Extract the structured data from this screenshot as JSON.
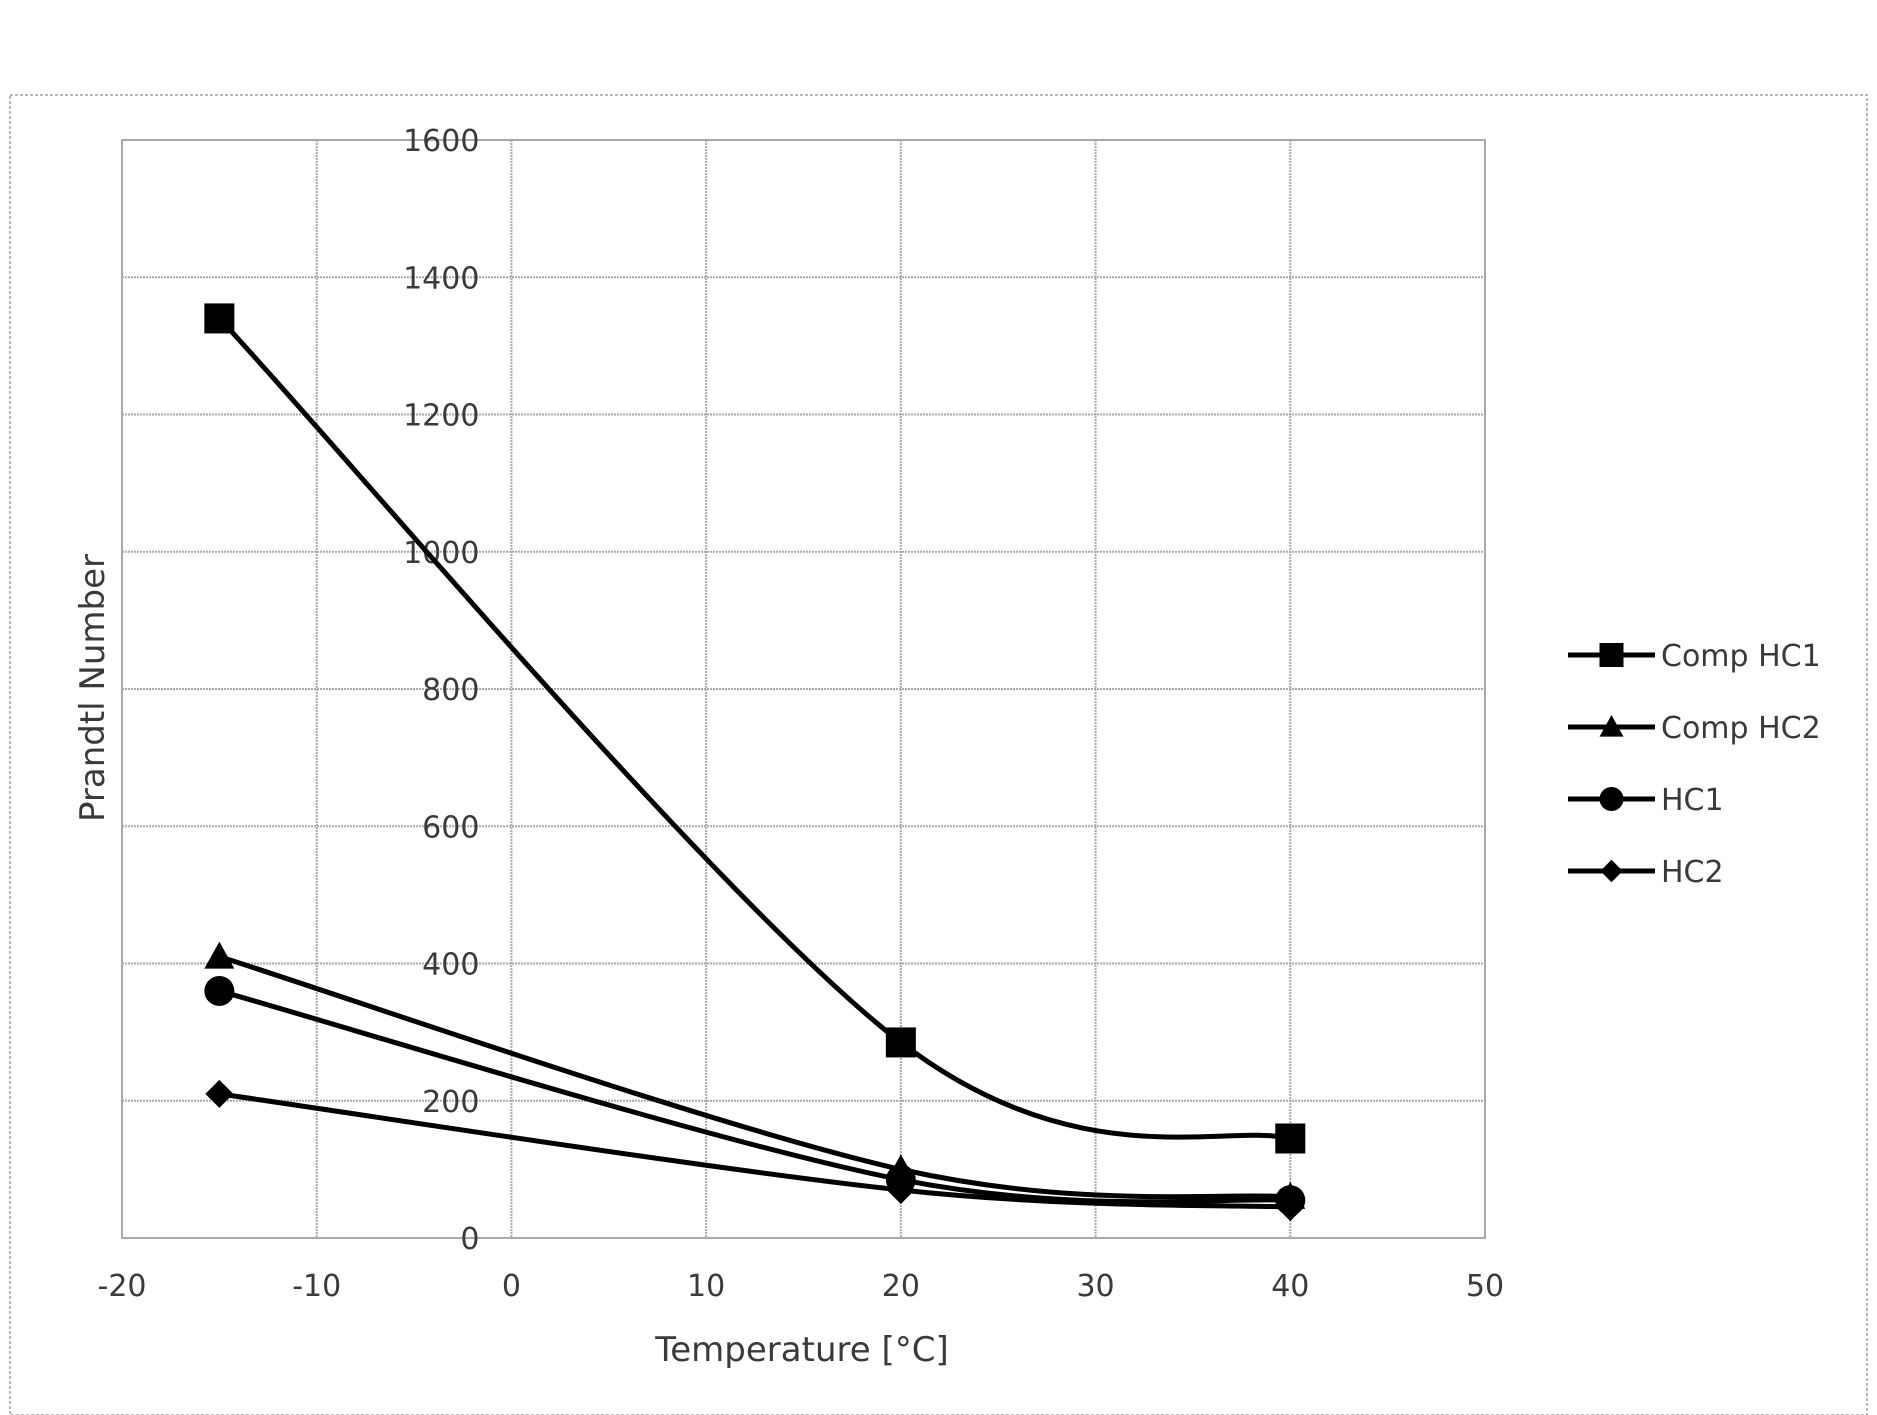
{
  "chart_data": {
    "type": "line",
    "title": "",
    "xlabel": "Temperature [°C]",
    "ylabel": "Prandtl Number",
    "xlim": [
      -20,
      50
    ],
    "ylim": [
      0,
      1600
    ],
    "xticks": [
      -20,
      -10,
      0,
      10,
      20,
      30,
      40,
      50
    ],
    "yticks": [
      0,
      200,
      400,
      600,
      800,
      1000,
      1200,
      1400,
      1600
    ],
    "grid": true,
    "smooth": true,
    "legend_position": "right",
    "series": [
      {
        "name": "Comp HC1",
        "marker": "square",
        "x": [
          -15,
          20,
          40
        ],
        "y": [
          1340,
          285,
          145
        ]
      },
      {
        "name": "Comp HC2",
        "marker": "triangle",
        "x": [
          -15,
          20,
          40
        ],
        "y": [
          410,
          100,
          60
        ]
      },
      {
        "name": "HC1",
        "marker": "circle",
        "x": [
          -15,
          20,
          40
        ],
        "y": [
          360,
          85,
          55
        ]
      },
      {
        "name": "HC2",
        "marker": "diamond",
        "x": [
          -15,
          20,
          40
        ],
        "y": [
          210,
          70,
          45
        ]
      }
    ]
  }
}
